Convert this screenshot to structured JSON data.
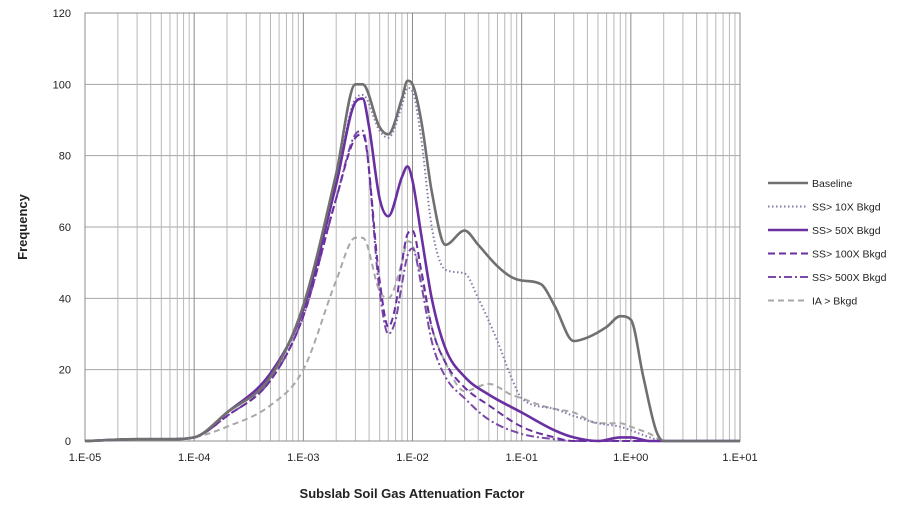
{
  "chart_data": {
    "type": "line",
    "title": "",
    "xlabel": "Subslab Soil Gas Attenuation Factor",
    "ylabel": "Frequency",
    "xscale": "log",
    "xlim": [
      1e-05,
      10
    ],
    "ylim": [
      0,
      120
    ],
    "x_ticks": [
      1e-05,
      0.0001,
      0.001,
      0.01,
      0.1,
      1,
      10
    ],
    "x_tick_labels": [
      "1.E-05",
      "1.E-04",
      "1.E-03",
      "1.E-02",
      "1.E-01",
      "1.E+00",
      "1.E+01"
    ],
    "y_ticks": [
      0,
      20,
      40,
      60,
      80,
      100,
      120
    ],
    "y_tick_labels": [
      "0",
      "20",
      "40",
      "60",
      "80",
      "100",
      "120"
    ],
    "grid": true,
    "legend_position": "right",
    "series": [
      {
        "name": "Baseline",
        "color": "#707070",
        "dash": "solid",
        "x": [
          1e-05,
          3e-05,
          6e-05,
          0.0001,
          0.0002,
          0.0005,
          0.001,
          0.002,
          0.003,
          0.0035,
          0.005,
          0.006,
          0.008,
          0.009,
          0.01,
          0.012,
          0.015,
          0.02,
          0.03,
          0.04,
          0.06,
          0.08,
          0.1,
          0.15,
          0.2,
          0.3,
          0.4,
          0.6,
          0.8,
          1.0,
          1.3,
          1.7,
          2,
          5,
          10
        ],
        "y": [
          0,
          0.5,
          0.5,
          1,
          8,
          18,
          38,
          75,
          100,
          100,
          88,
          86,
          96,
          101,
          100,
          90,
          70,
          55,
          59,
          55,
          49,
          46,
          45,
          44,
          38,
          28,
          29,
          32,
          35,
          34,
          18,
          3,
          0,
          0,
          0
        ]
      },
      {
        "name": "SS> 10X Bkgd",
        "color": "#8a78a8",
        "dash": "1.5,2.5",
        "x": [
          1e-05,
          3e-05,
          6e-05,
          0.0001,
          0.0002,
          0.0005,
          0.001,
          0.002,
          0.003,
          0.0035,
          0.005,
          0.006,
          0.008,
          0.009,
          0.01,
          0.012,
          0.015,
          0.02,
          0.03,
          0.04,
          0.06,
          0.08,
          0.1,
          0.2,
          0.3,
          0.5,
          0.8,
          1.0,
          1.5,
          2,
          10
        ],
        "y": [
          0,
          0.5,
          0.5,
          1,
          8,
          18,
          37,
          73,
          96,
          97,
          87,
          85,
          94,
          99,
          98,
          85,
          60,
          48,
          47,
          40,
          28,
          18,
          12,
          9,
          7,
          5,
          4,
          3,
          1,
          0,
          0
        ]
      },
      {
        "name": "SS> 50X Bkgd",
        "color": "#6a2fa0",
        "dash": "solid",
        "x": [
          1e-05,
          3e-05,
          6e-05,
          0.0001,
          0.0002,
          0.0005,
          0.001,
          0.002,
          0.003,
          0.0035,
          0.004,
          0.005,
          0.006,
          0.008,
          0.009,
          0.01,
          0.012,
          0.015,
          0.02,
          0.03,
          0.05,
          0.1,
          0.2,
          0.3,
          0.5,
          0.8,
          1.0,
          1.5,
          2,
          10
        ],
        "y": [
          0,
          0.5,
          0.5,
          1,
          8,
          19,
          37,
          72,
          95,
          96,
          88,
          68,
          63,
          74,
          77,
          73,
          58,
          40,
          26,
          18,
          13,
          8,
          3,
          1,
          0,
          1,
          1,
          0,
          0,
          0
        ]
      },
      {
        "name": "SS> 100X Bkgd",
        "color": "#6a2fa0",
        "dash": "7,4",
        "x": [
          1e-05,
          3e-05,
          6e-05,
          0.0001,
          0.0002,
          0.0005,
          0.001,
          0.002,
          0.003,
          0.0035,
          0.005,
          0.006,
          0.007,
          0.008,
          0.009,
          0.01,
          0.012,
          0.015,
          0.02,
          0.03,
          0.05,
          0.1,
          0.2,
          0.3,
          0.5,
          1.0,
          2,
          10
        ],
        "y": [
          0,
          0.5,
          0.5,
          1,
          7,
          17,
          35,
          68,
          85,
          86,
          45,
          32,
          38,
          50,
          58,
          59,
          48,
          32,
          22,
          15,
          10,
          4,
          1,
          0,
          0,
          0,
          0,
          0
        ]
      },
      {
        "name": "SS> 500X Bkgd",
        "color": "#7a4aa8",
        "dash": "8,3,2,3",
        "x": [
          1e-05,
          3e-05,
          6e-05,
          0.0001,
          0.0002,
          0.0005,
          0.001,
          0.002,
          0.003,
          0.0035,
          0.005,
          0.006,
          0.007,
          0.008,
          0.009,
          0.01,
          0.012,
          0.015,
          0.02,
          0.03,
          0.05,
          0.1,
          0.2,
          0.3,
          0.5,
          1.0,
          2,
          10
        ],
        "y": [
          0,
          0.5,
          0.5,
          1,
          7,
          17,
          35,
          68,
          86,
          87,
          42,
          30,
          34,
          44,
          52,
          54,
          44,
          28,
          18,
          12,
          6,
          2,
          0.5,
          0,
          0,
          0,
          0,
          0
        ]
      },
      {
        "name": "IA > Bkgd",
        "color": "#a8a8a8",
        "dash": "6,4",
        "x": [
          1e-05,
          3e-05,
          6e-05,
          0.0001,
          0.0002,
          0.0005,
          0.001,
          0.002,
          0.003,
          0.0035,
          0.005,
          0.006,
          0.008,
          0.009,
          0.01,
          0.012,
          0.015,
          0.02,
          0.03,
          0.05,
          0.08,
          0.1,
          0.15,
          0.2,
          0.3,
          0.5,
          0.8,
          1.0,
          1.5,
          2,
          10
        ],
        "y": [
          0,
          0.5,
          0.5,
          1,
          4,
          10,
          20,
          45,
          57,
          57,
          42,
          40,
          50,
          56,
          55,
          46,
          32,
          22,
          14,
          16,
          13,
          12,
          10,
          9,
          8,
          5,
          5,
          4,
          2,
          0,
          0
        ]
      }
    ]
  }
}
